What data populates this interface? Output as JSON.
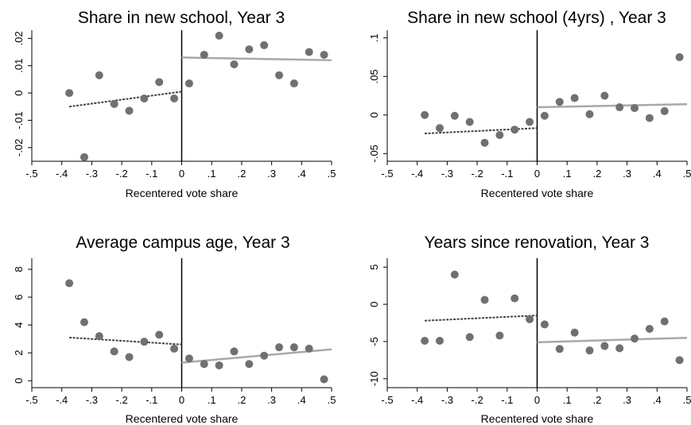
{
  "chart_data": [
    {
      "type": "scatter",
      "title": "Share in new school, Year 3",
      "xlabel": "Recentered vote share",
      "ylabel": "",
      "xlim": [
        -0.5,
        0.5
      ],
      "ylim": [
        -0.025,
        0.023
      ],
      "xticks": [
        "-.5",
        "-.4",
        "-.3",
        "-.2",
        "-.1",
        "0",
        ".1",
        ".2",
        ".3",
        ".4",
        ".5"
      ],
      "yticks": [
        {
          "v": -0.02,
          "t": "-.02"
        },
        {
          "v": -0.01,
          "t": "-.01"
        },
        {
          "v": 0,
          "t": "0"
        },
        {
          "v": 0.01,
          "t": ".01"
        },
        {
          "v": 0.02,
          "t": ".02"
        }
      ],
      "points": [
        [
          -0.375,
          0.0
        ],
        [
          -0.325,
          -0.0235
        ],
        [
          -0.275,
          0.0065
        ],
        [
          -0.225,
          -0.004
        ],
        [
          -0.175,
          -0.0065
        ],
        [
          -0.125,
          -0.002
        ],
        [
          -0.075,
          0.004
        ],
        [
          -0.025,
          -0.002
        ],
        [
          0.025,
          0.0035
        ],
        [
          0.075,
          0.014
        ],
        [
          0.125,
          0.021
        ],
        [
          0.175,
          0.0105
        ],
        [
          0.225,
          0.016
        ],
        [
          0.275,
          0.0175
        ],
        [
          0.325,
          0.0065
        ],
        [
          0.375,
          0.0035
        ],
        [
          0.425,
          0.015
        ],
        [
          0.475,
          0.014
        ]
      ],
      "fit_left": [
        [
          -0.375,
          -0.005
        ],
        [
          0.0,
          0.0005
        ]
      ],
      "fit_right": [
        [
          0.0,
          0.013
        ],
        [
          0.5,
          0.012
        ]
      ],
      "grid": false,
      "vline_x": 0
    },
    {
      "type": "scatter",
      "title": "Share in new school (4yrs) , Year 3",
      "xlabel": "Recentered vote share",
      "ylabel": "",
      "xlim": [
        -0.5,
        0.5
      ],
      "ylim": [
        -0.06,
        0.11
      ],
      "xticks": [
        "-.5",
        "-.4",
        "-.3",
        "-.2",
        "-.1",
        "0",
        ".1",
        ".2",
        ".3",
        ".4",
        ".5"
      ],
      "yticks": [
        {
          "v": -0.05,
          "t": "-.05"
        },
        {
          "v": 0,
          "t": "0"
        },
        {
          "v": 0.05,
          "t": ".05"
        },
        {
          "v": 0.1,
          "t": ".1"
        }
      ],
      "points": [
        [
          -0.375,
          0.0
        ],
        [
          -0.325,
          -0.017
        ],
        [
          -0.275,
          -0.001
        ],
        [
          -0.225,
          -0.009
        ],
        [
          -0.175,
          -0.036
        ],
        [
          -0.125,
          -0.026
        ],
        [
          -0.075,
          -0.019
        ],
        [
          -0.025,
          -0.009
        ],
        [
          0.025,
          -0.001
        ],
        [
          0.075,
          0.017
        ],
        [
          0.125,
          0.022
        ],
        [
          0.175,
          0.001
        ],
        [
          0.225,
          0.025
        ],
        [
          0.275,
          0.01
        ],
        [
          0.325,
          0.009
        ],
        [
          0.375,
          -0.004
        ],
        [
          0.425,
          0.005
        ],
        [
          0.475,
          0.075
        ]
      ],
      "fit_left": [
        [
          -0.375,
          -0.024
        ],
        [
          0.0,
          -0.017
        ]
      ],
      "fit_right": [
        [
          0.0,
          0.01
        ],
        [
          0.5,
          0.014
        ]
      ],
      "grid": false,
      "vline_x": 0
    },
    {
      "type": "scatter",
      "title": "Average campus age, Year 3",
      "xlabel": "Recentered vote share",
      "ylabel": "",
      "xlim": [
        -0.5,
        0.5
      ],
      "ylim": [
        -0.5,
        8.8
      ],
      "xticks": [
        "-.5",
        "-.4",
        "-.3",
        "-.2",
        "-.1",
        "0",
        ".1",
        ".2",
        ".3",
        ".4",
        ".5"
      ],
      "yticks": [
        {
          "v": 0,
          "t": "0"
        },
        {
          "v": 2,
          "t": "2"
        },
        {
          "v": 4,
          "t": "4"
        },
        {
          "v": 6,
          "t": "6"
        },
        {
          "v": 8,
          "t": "8"
        }
      ],
      "points": [
        [
          -0.375,
          7.0
        ],
        [
          -0.325,
          4.2
        ],
        [
          -0.275,
          3.2
        ],
        [
          -0.225,
          2.1
        ],
        [
          -0.175,
          1.7
        ],
        [
          -0.125,
          2.8
        ],
        [
          -0.075,
          3.3
        ],
        [
          -0.025,
          2.3
        ],
        [
          0.025,
          1.6
        ],
        [
          0.075,
          1.2
        ],
        [
          0.125,
          1.1
        ],
        [
          0.175,
          2.1
        ],
        [
          0.225,
          1.2
        ],
        [
          0.275,
          1.8
        ],
        [
          0.325,
          2.4
        ],
        [
          0.375,
          2.4
        ],
        [
          0.425,
          2.3
        ],
        [
          0.475,
          0.1
        ]
      ],
      "fit_left": [
        [
          -0.375,
          3.1
        ],
        [
          0.0,
          2.6
        ]
      ],
      "fit_right": [
        [
          0.0,
          1.3
        ],
        [
          0.5,
          2.25
        ]
      ],
      "grid": false,
      "vline_x": 0
    },
    {
      "type": "scatter",
      "title": "Years since renovation, Year 3",
      "xlabel": "Recentered vote share",
      "ylabel": "",
      "xlim": [
        -0.5,
        0.5
      ],
      "ylim": [
        -11.2,
        6.2
      ],
      "xticks": [
        "-.5",
        "-.4",
        "-.3",
        "-.2",
        "-.1",
        "0",
        ".1",
        ".2",
        ".3",
        ".4",
        ".5"
      ],
      "yticks": [
        {
          "v": -10,
          "t": "-10"
        },
        {
          "v": -5,
          "t": "-5"
        },
        {
          "v": 0,
          "t": "0"
        },
        {
          "v": 5,
          "t": "5"
        }
      ],
      "points": [
        [
          -0.375,
          -4.9
        ],
        [
          -0.325,
          -4.9
        ],
        [
          -0.275,
          4.0
        ],
        [
          -0.225,
          -4.4
        ],
        [
          -0.175,
          0.6
        ],
        [
          -0.125,
          -4.2
        ],
        [
          -0.075,
          0.8
        ],
        [
          -0.025,
          -2.0
        ],
        [
          0.025,
          -2.7
        ],
        [
          0.075,
          -6.0
        ],
        [
          0.125,
          -3.8
        ],
        [
          0.175,
          -6.2
        ],
        [
          0.225,
          -5.6
        ],
        [
          0.275,
          -5.9
        ],
        [
          0.325,
          -4.6
        ],
        [
          0.375,
          -3.3
        ],
        [
          0.425,
          -2.3
        ],
        [
          0.475,
          -7.5
        ]
      ],
      "fit_left": [
        [
          -0.375,
          -2.2
        ],
        [
          0.0,
          -1.5
        ]
      ],
      "fit_right": [
        [
          0.0,
          -5.1
        ],
        [
          0.5,
          -4.5
        ]
      ],
      "grid": false,
      "vline_x": 0
    }
  ],
  "colors": {
    "marker": "#707070",
    "fit_left": "#444444",
    "fit_right": "#a8a8a8",
    "axis": "#000000"
  }
}
